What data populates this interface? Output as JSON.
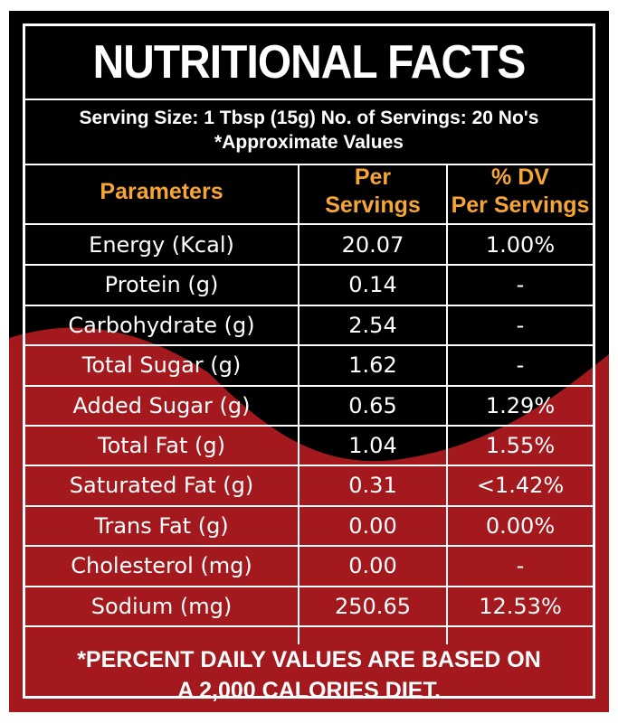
{
  "title": "NUTRITIONAL FACTS",
  "serving": {
    "line1": "Serving Size: 1 Tbsp (15g) No. of Servings: 20 No's",
    "line2": "*Approximate Values"
  },
  "table": {
    "headers": {
      "parameters": "Parameters",
      "per_servings_line1": "Per",
      "per_servings_line2": "Servings",
      "dv_line1": "% DV",
      "dv_line2": "Per Servings"
    },
    "rows": [
      {
        "parameter": "Energy (Kcal)",
        "per_serving": "20.07",
        "dv": "1.00%"
      },
      {
        "parameter": "Protein (g)",
        "per_serving": "0.14",
        "dv": "-"
      },
      {
        "parameter": "Carbohydrate (g)",
        "per_serving": "2.54",
        "dv": "-"
      },
      {
        "parameter": "Total Sugar (g)",
        "per_serving": "1.62",
        "dv": "-"
      },
      {
        "parameter": "Added Sugar (g)",
        "per_serving": "0.65",
        "dv": "1.29%"
      },
      {
        "parameter": "Total Fat (g)",
        "per_serving": "1.04",
        "dv": "1.55%"
      },
      {
        "parameter": "Saturated Fat (g)",
        "per_serving": "0.31",
        "dv": "<1.42%"
      },
      {
        "parameter": "Trans Fat (g)",
        "per_serving": "0.00",
        "dv": "0.00%"
      },
      {
        "parameter": "Cholesterol (mg)",
        "per_serving": "0.00",
        "dv": "-"
      },
      {
        "parameter": "Sodium (mg)",
        "per_serving": "250.65",
        "dv": "12.53%"
      }
    ]
  },
  "footer": {
    "line1": "*PERCENT DAILY VALUES ARE BASED ON",
    "line2": "A 2,000 CALORIES DIET."
  },
  "colors": {
    "background": "#000000",
    "accent_red": "#a3191d",
    "header_orange": "#f7a534",
    "text": "#ffffff"
  }
}
